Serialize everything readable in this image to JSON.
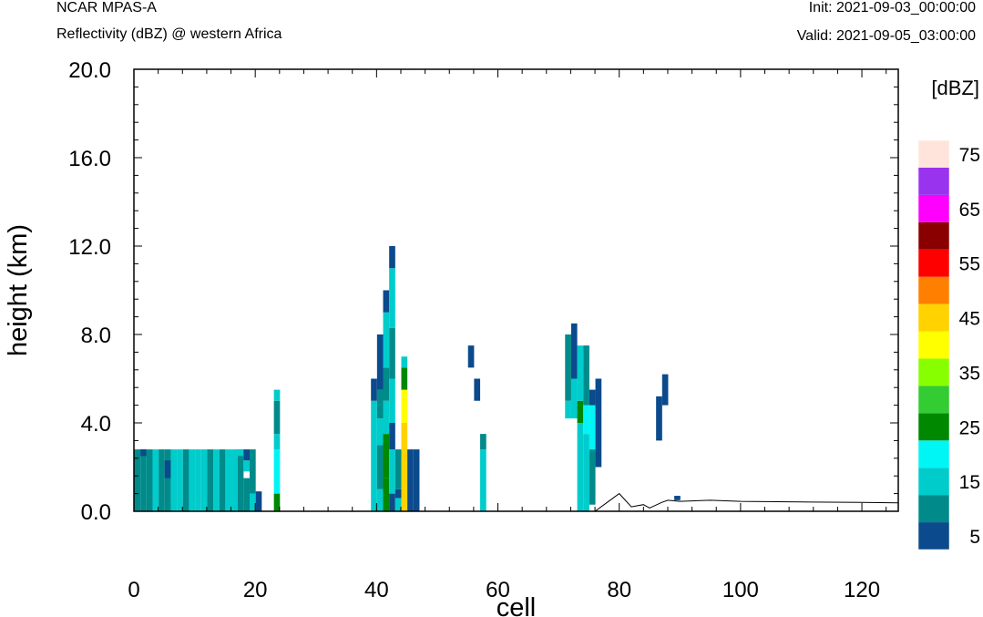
{
  "header": {
    "model": "NCAR MPAS-A",
    "field": "Reflectivity (dBZ) @ western Africa",
    "init": "Init: 2021-09-03_00:00:00",
    "valid": "Valid: 2021-09-05_03:00:00"
  },
  "chart_data": {
    "type": "heatmap",
    "xlabel": "cell",
    "ylabel": "height (km)",
    "xlim": [
      0,
      126
    ],
    "ylim": [
      0,
      20
    ],
    "xticks": [
      0,
      20,
      40,
      60,
      80,
      100,
      120
    ],
    "yticks": [
      "0.0",
      "4.0",
      "8.0",
      "12.0",
      "16.0",
      "20.0"
    ],
    "colorbar": {
      "unit": "[dBZ]",
      "levels": [
        5,
        10,
        15,
        20,
        25,
        30,
        35,
        40,
        45,
        50,
        55,
        60,
        65,
        70,
        75
      ],
      "tick_labels": [
        "5",
        "15",
        "25",
        "35",
        "45",
        "55",
        "65",
        "75"
      ],
      "colors": [
        "#0b4a8c",
        "#008a8a",
        "#00cccc",
        "#00f5f5",
        "#008800",
        "#33cc33",
        "#88ff00",
        "#ffff00",
        "#ffd200",
        "#ff8000",
        "#ff0000",
        "#8a0000",
        "#ff00ff",
        "#9933ee",
        "#ffe4dc"
      ]
    },
    "terrain": [
      [
        0,
        0
      ],
      [
        76,
        0
      ],
      [
        78,
        0.4
      ],
      [
        80,
        0.8
      ],
      [
        82,
        0.2
      ],
      [
        84,
        0.3
      ],
      [
        85,
        0.15
      ],
      [
        87,
        0.4
      ],
      [
        88,
        0.5
      ],
      [
        90,
        0.45
      ],
      [
        95,
        0.5
      ],
      [
        100,
        0.45
      ],
      [
        110,
        0.42
      ],
      [
        120,
        0.4
      ],
      [
        126,
        0.38
      ]
    ],
    "columns": [
      {
        "x": 0,
        "cells": [
          [
            0,
            2.8,
            1
          ]
        ]
      },
      {
        "x": 1,
        "cells": [
          [
            0,
            2.8,
            1
          ],
          [
            2.5,
            2.8,
            0
          ]
        ]
      },
      {
        "x": 2,
        "cells": [
          [
            0,
            2.8,
            1
          ]
        ]
      },
      {
        "x": 3,
        "cells": [
          [
            0,
            2.8,
            2
          ]
        ]
      },
      {
        "x": 4,
        "cells": [
          [
            0,
            2.8,
            1
          ]
        ]
      },
      {
        "x": 5,
        "cells": [
          [
            0,
            2.8,
            1
          ],
          [
            1.5,
            2.3,
            0
          ]
        ]
      },
      {
        "x": 6,
        "cells": [
          [
            0,
            2.8,
            2
          ]
        ]
      },
      {
        "x": 7,
        "cells": [
          [
            0,
            2.8,
            2
          ]
        ]
      },
      {
        "x": 8,
        "cells": [
          [
            0,
            2.8,
            1
          ]
        ]
      },
      {
        "x": 9,
        "cells": [
          [
            0,
            2.8,
            2
          ]
        ]
      },
      {
        "x": 10,
        "cells": [
          [
            0,
            2.8,
            2
          ]
        ]
      },
      {
        "x": 11,
        "cells": [
          [
            0,
            2.8,
            2
          ]
        ]
      },
      {
        "x": 12,
        "cells": [
          [
            0,
            2.8,
            1
          ]
        ]
      },
      {
        "x": 13,
        "cells": [
          [
            0,
            2.8,
            2
          ]
        ]
      },
      {
        "x": 14,
        "cells": [
          [
            0,
            2.8,
            1
          ]
        ]
      },
      {
        "x": 15,
        "cells": [
          [
            0,
            2.8,
            2
          ]
        ]
      },
      {
        "x": 16,
        "cells": [
          [
            0,
            2.8,
            2
          ]
        ]
      },
      {
        "x": 17,
        "cells": [
          [
            0,
            2.8,
            1
          ],
          [
            2.5,
            2.8,
            2
          ]
        ]
      },
      {
        "x": 18,
        "cells": [
          [
            0,
            1.5,
            1
          ],
          [
            1.8,
            2.3,
            2
          ],
          [
            2.3,
            2.8,
            0
          ]
        ]
      },
      {
        "x": 19,
        "cells": [
          [
            0,
            0.8,
            2
          ],
          [
            0.8,
            2.8,
            1
          ]
        ]
      },
      {
        "x": 20,
        "cells": [
          [
            0,
            0.9,
            0
          ]
        ]
      },
      {
        "x": 23,
        "cells": [
          [
            0,
            0.8,
            4
          ],
          [
            0.8,
            2.8,
            3
          ],
          [
            2.8,
            3.5,
            2
          ],
          [
            3.5,
            5.0,
            1
          ],
          [
            5.0,
            5.5,
            2
          ]
        ]
      },
      {
        "x": 39,
        "cells": [
          [
            0,
            5.0,
            2
          ],
          [
            5.0,
            6.0,
            0
          ]
        ]
      },
      {
        "x": 40,
        "cells": [
          [
            0,
            1.0,
            2
          ],
          [
            1.0,
            3.0,
            1
          ],
          [
            3.0,
            4.2,
            2
          ],
          [
            4.2,
            5.5,
            1
          ],
          [
            5.5,
            8.0,
            0
          ]
        ]
      },
      {
        "x": 41,
        "cells": [
          [
            0,
            1.5,
            4
          ],
          [
            1.5,
            3.5,
            4
          ],
          [
            3.5,
            5.0,
            2
          ],
          [
            5.0,
            6.5,
            1
          ],
          [
            6.5,
            9.0,
            2
          ],
          [
            9.0,
            10.0,
            0
          ]
        ]
      },
      {
        "x": 42,
        "cells": [
          [
            0,
            0.8,
            0
          ],
          [
            0.8,
            2.8,
            2
          ],
          [
            2.8,
            4.0,
            0
          ],
          [
            4.0,
            6.0,
            2
          ],
          [
            6.0,
            8.3,
            1
          ],
          [
            8.3,
            11.0,
            2
          ],
          [
            11.0,
            12.0,
            0
          ]
        ]
      },
      {
        "x": 43,
        "cells": [
          [
            0,
            0.6,
            2
          ],
          [
            0.6,
            1.0,
            0
          ],
          [
            1.0,
            2.8,
            1
          ]
        ]
      },
      {
        "x": 44,
        "cells": [
          [
            0,
            4.0,
            8
          ],
          [
            4.0,
            5.5,
            7
          ],
          [
            5.5,
            6.5,
            4
          ],
          [
            6.5,
            7.0,
            2
          ]
        ]
      },
      {
        "x": 45,
        "cells": [
          [
            0,
            2.8,
            0
          ]
        ]
      },
      {
        "x": 46,
        "cells": [
          [
            0,
            2.8,
            0
          ]
        ]
      },
      {
        "x": 55,
        "cells": [
          [
            6.5,
            7.5,
            0
          ]
        ]
      },
      {
        "x": 56,
        "cells": [
          [
            5.0,
            6.0,
            0
          ]
        ]
      },
      {
        "x": 57,
        "cells": [
          [
            0,
            2.8,
            2
          ],
          [
            2.8,
            3.5,
            1
          ]
        ]
      },
      {
        "x": 71,
        "cells": [
          [
            4.2,
            5.0,
            2
          ],
          [
            5.0,
            8.0,
            1
          ]
        ]
      },
      {
        "x": 72,
        "cells": [
          [
            4.2,
            6.0,
            2
          ],
          [
            6.0,
            8.5,
            0
          ]
        ]
      },
      {
        "x": 73,
        "cells": [
          [
            0,
            4.0,
            2
          ],
          [
            4.0,
            5.0,
            4
          ],
          [
            5.0,
            7.5,
            2
          ]
        ]
      },
      {
        "x": 74,
        "cells": [
          [
            0,
            3.5,
            2
          ],
          [
            3.5,
            4.8,
            3
          ],
          [
            4.8,
            7.5,
            1
          ]
        ]
      },
      {
        "x": 75,
        "cells": [
          [
            0.3,
            2.8,
            1
          ],
          [
            2.8,
            4.8,
            3
          ],
          [
            4.8,
            5.5,
            0
          ]
        ]
      },
      {
        "x": 76,
        "cells": [
          [
            2.0,
            4.0,
            0
          ],
          [
            4.0,
            6.0,
            0
          ]
        ]
      },
      {
        "x": 86,
        "cells": [
          [
            3.2,
            5.2,
            0
          ]
        ]
      },
      {
        "x": 87,
        "cells": [
          [
            4.8,
            6.2,
            0
          ]
        ]
      },
      {
        "x": 89,
        "cells": [
          [
            0.5,
            0.7,
            0
          ]
        ]
      }
    ]
  }
}
